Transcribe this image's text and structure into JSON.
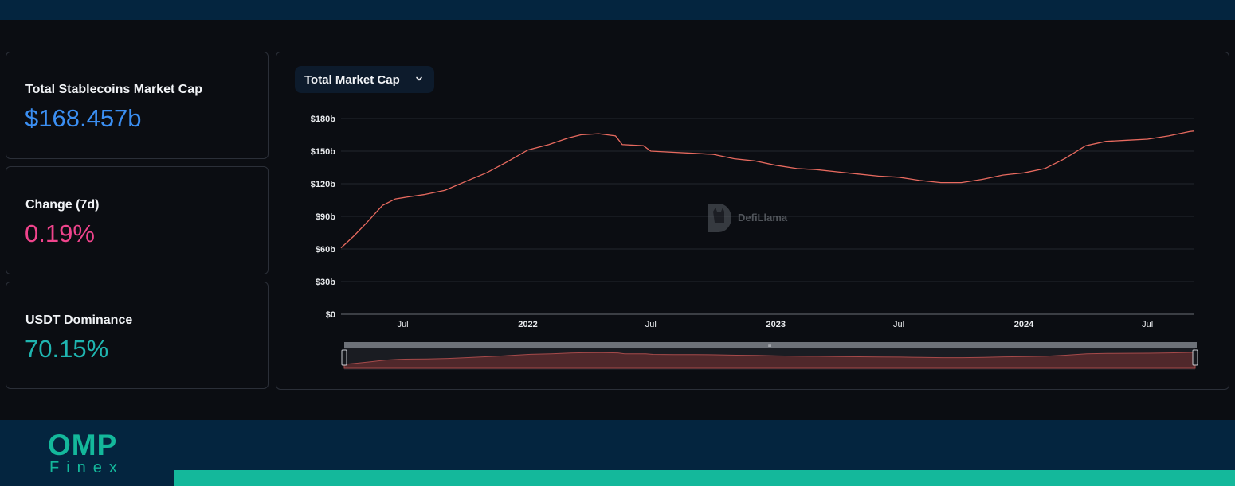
{
  "stats": [
    {
      "label": "Total Stablecoins Market Cap",
      "value": "$168.457b",
      "color": "#3b8ff3"
    },
    {
      "label": "Change (7d)",
      "value": "0.19%",
      "color": "#f0448c"
    },
    {
      "label": "USDT Dominance",
      "value": "70.15%",
      "color": "#1fb5b0"
    }
  ],
  "metric_selector": {
    "label": "Total Market Cap",
    "icon": "chevron-down-icon"
  },
  "watermark": {
    "text": "DefiLlama",
    "icon": "llama-logo-icon"
  },
  "brand": {
    "name": "OMP",
    "sub": "Finex"
  },
  "chart_data": {
    "type": "line",
    "unit": "billion USD",
    "line_color": "#e86a5f",
    "xlim": [
      "2021-04-01",
      "2024-09-08"
    ],
    "ylim": [
      0,
      180
    ],
    "y_ticks": [
      0,
      30,
      60,
      90,
      120,
      150,
      180
    ],
    "y_tick_labels": [
      "$0",
      "$30b",
      "$60b",
      "$90b",
      "$120b",
      "$150b",
      "$180b"
    ],
    "x_ticks": [
      {
        "date": "2021-07-01",
        "label": "Jul",
        "bold": false
      },
      {
        "date": "2022-01-01",
        "label": "2022",
        "bold": true
      },
      {
        "date": "2022-07-01",
        "label": "Jul",
        "bold": false
      },
      {
        "date": "2023-01-01",
        "label": "2023",
        "bold": true
      },
      {
        "date": "2023-07-01",
        "label": "Jul",
        "bold": false
      },
      {
        "date": "2024-01-01",
        "label": "2024",
        "bold": true
      },
      {
        "date": "2024-07-01",
        "label": "Jul",
        "bold": false
      }
    ],
    "grid": true,
    "legend": "none",
    "series": [
      {
        "points": [
          [
            "2021-04-01",
            61
          ],
          [
            "2021-04-20",
            72
          ],
          [
            "2021-05-10",
            85
          ],
          [
            "2021-06-01",
            100
          ],
          [
            "2021-06-20",
            106
          ],
          [
            "2021-07-10",
            108
          ],
          [
            "2021-08-01",
            110
          ],
          [
            "2021-09-01",
            114
          ],
          [
            "2021-10-01",
            122
          ],
          [
            "2021-11-01",
            130
          ],
          [
            "2021-12-01",
            140
          ],
          [
            "2022-01-01",
            151
          ],
          [
            "2022-02-01",
            156
          ],
          [
            "2022-03-01",
            162
          ],
          [
            "2022-03-20",
            165
          ],
          [
            "2022-04-15",
            166
          ],
          [
            "2022-05-10",
            164
          ],
          [
            "2022-05-20",
            156
          ],
          [
            "2022-06-20",
            155
          ],
          [
            "2022-07-01",
            150
          ],
          [
            "2022-08-01",
            149
          ],
          [
            "2022-09-01",
            148
          ],
          [
            "2022-10-01",
            147
          ],
          [
            "2022-11-01",
            143
          ],
          [
            "2022-12-01",
            141
          ],
          [
            "2023-01-01",
            137
          ],
          [
            "2023-02-01",
            134
          ],
          [
            "2023-03-01",
            133
          ],
          [
            "2023-04-01",
            131
          ],
          [
            "2023-05-01",
            129
          ],
          [
            "2023-06-01",
            127
          ],
          [
            "2023-07-01",
            126
          ],
          [
            "2023-08-01",
            123
          ],
          [
            "2023-09-01",
            121
          ],
          [
            "2023-10-01",
            121
          ],
          [
            "2023-11-01",
            124
          ],
          [
            "2023-12-01",
            128
          ],
          [
            "2024-01-01",
            130
          ],
          [
            "2024-02-01",
            134
          ],
          [
            "2024-03-01",
            143
          ],
          [
            "2024-04-01",
            155
          ],
          [
            "2024-05-01",
            159
          ],
          [
            "2024-06-01",
            160
          ],
          [
            "2024-07-01",
            161
          ],
          [
            "2024-08-01",
            164
          ],
          [
            "2024-09-01",
            168
          ],
          [
            "2024-09-08",
            168.5
          ]
        ]
      }
    ]
  }
}
